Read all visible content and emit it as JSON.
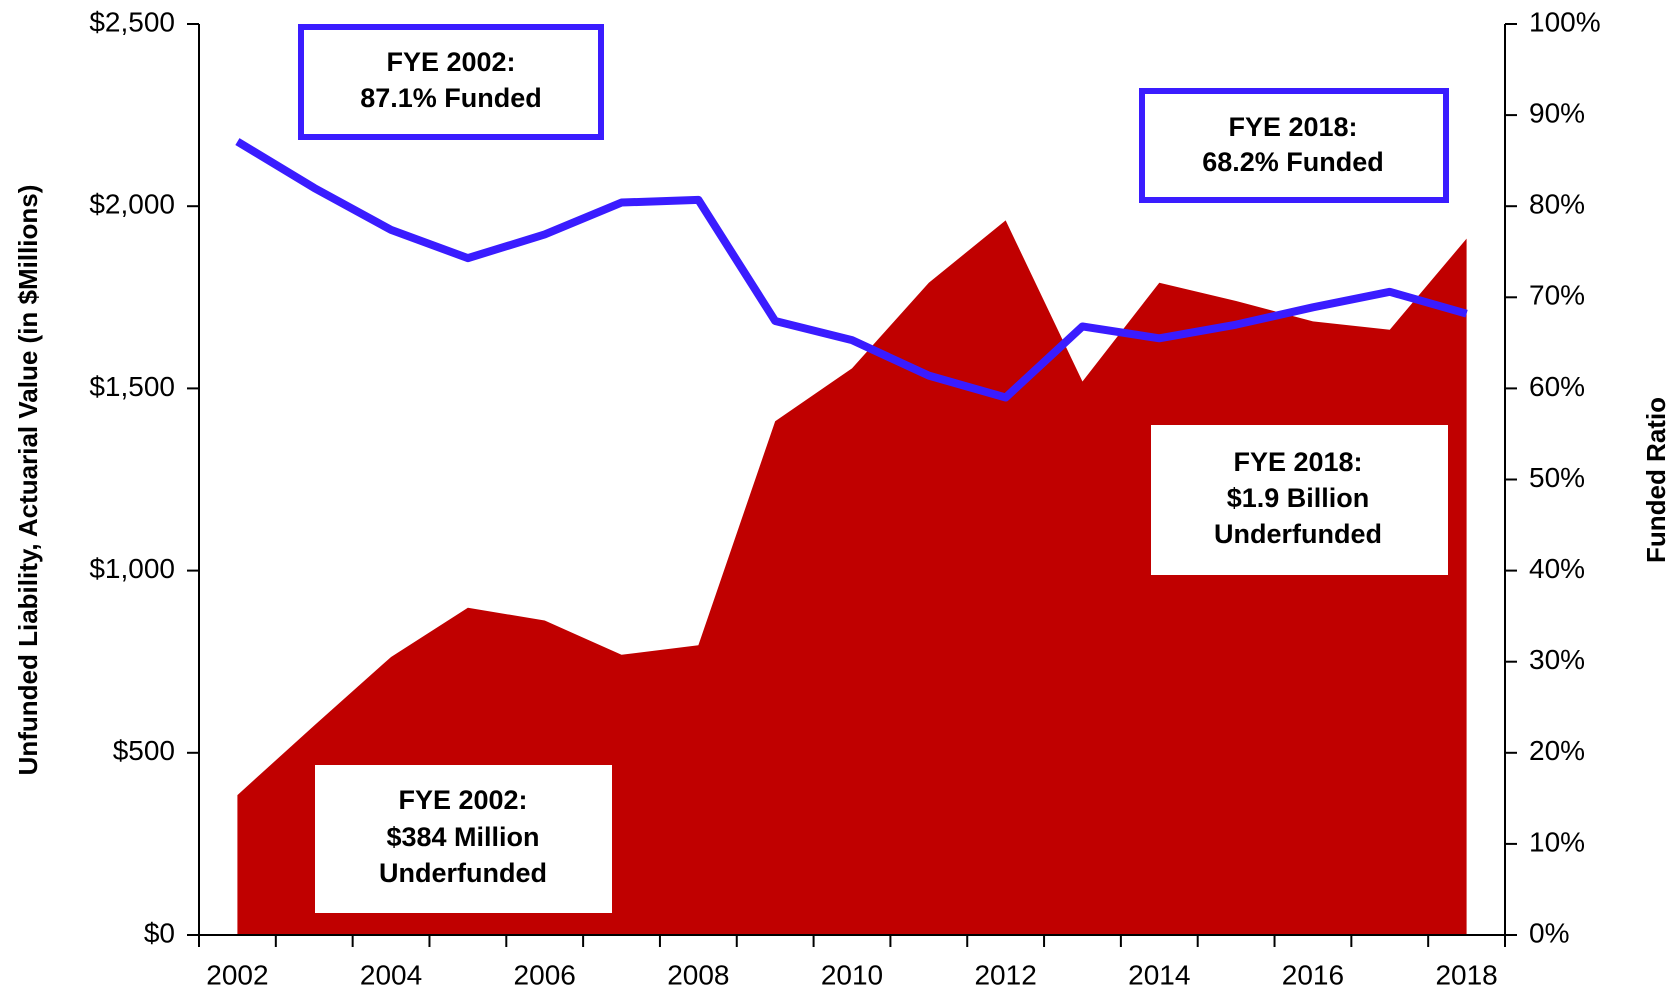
{
  "chart_data": {
    "type": "area-line",
    "y_label": "Unfunded Liability, Actuarial Value (in $Millions)",
    "y2_label": "Funded Ratio",
    "categories": [
      "2002",
      null,
      "2004",
      null,
      "2006",
      null,
      "2008",
      null,
      "2010",
      null,
      "2012",
      null,
      "2014",
      null,
      "2016",
      null,
      "2018"
    ],
    "series": [
      {
        "type": "area",
        "color": "#c00000",
        "values": [
          384,
          575,
          763,
          898,
          863,
          769,
          795,
          1410,
          1555,
          1790,
          1961,
          1519,
          1790,
          1740,
          1684,
          1661,
          1911
        ]
      },
      {
        "type": "line",
        "axis": "y2",
        "color": "#3a1cff",
        "values": [
          87.1,
          82.0,
          77.4,
          74.3,
          76.9,
          80.4,
          80.7,
          67.4,
          65.3,
          61.4,
          59.0,
          66.8,
          65.5,
          67.0,
          68.9,
          70.6,
          68.2
        ]
      }
    ],
    "ylim": [
      0,
      2500
    ],
    "yticks": [
      {
        "value": 0,
        "label": "$0"
      },
      {
        "value": 500,
        "label": "$500"
      },
      {
        "value": 1000,
        "label": "$1,000"
      },
      {
        "value": 1500,
        "label": "$1,500"
      },
      {
        "value": 2000,
        "label": "$2,000"
      },
      {
        "value": 2500,
        "label": "$2,500"
      }
    ],
    "y2lim": [
      0,
      100
    ],
    "y2ticks": [
      {
        "value": 0,
        "label": "0%"
      },
      {
        "value": 10,
        "label": "10%"
      },
      {
        "value": 20,
        "label": "20%"
      },
      {
        "value": 30,
        "label": "30%"
      },
      {
        "value": 40,
        "label": "40%"
      },
      {
        "value": 50,
        "label": "50%"
      },
      {
        "value": 60,
        "label": "60%"
      },
      {
        "value": 70,
        "label": "70%"
      },
      {
        "value": 80,
        "label": "80%"
      },
      {
        "value": 90,
        "label": "90%"
      },
      {
        "value": 100,
        "label": "100%"
      }
    ],
    "annotations": [
      {
        "lines": [
          "FYE 2002:",
          "87.1% Funded"
        ]
      },
      {
        "lines": [
          "FYE 2018:",
          "68.2% Funded"
        ]
      },
      {
        "lines": [
          "FYE 2018:",
          "$1.9 Billion",
          "Underfunded"
        ]
      },
      {
        "lines": [
          "FYE 2002:",
          "$384 Million",
          "Underfunded"
        ]
      }
    ]
  }
}
